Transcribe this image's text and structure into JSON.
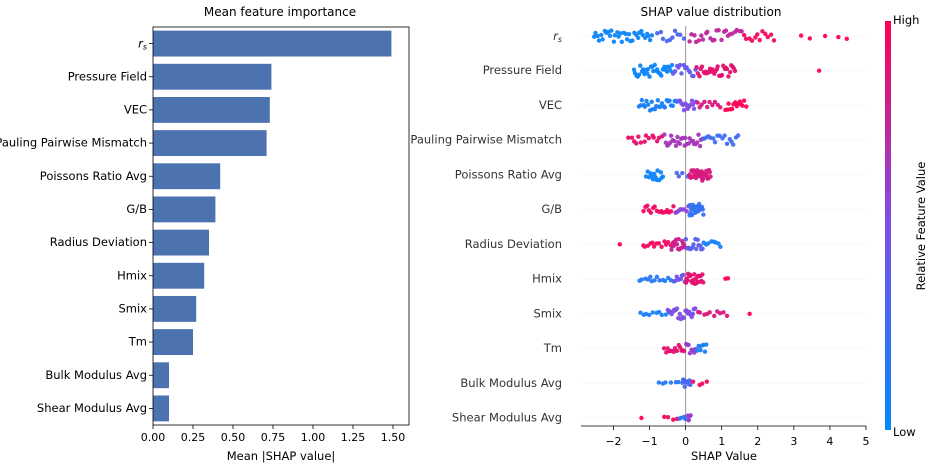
{
  "colors": {
    "bar": "#4c72b0",
    "low": "#008bfb",
    "high": "#ff0052",
    "zero_line": "#999999",
    "grid": "#eeeeee"
  },
  "chart_data": [
    {
      "type": "bar",
      "orientation": "horizontal",
      "title": "Mean feature importance",
      "xlabel": "Mean |SHAP value|",
      "ylabel": "",
      "categories": [
        "r_s",
        "Pressure Field",
        "VEC",
        "Pauling Pairwise Mismatch",
        "Poissons Ratio Avg",
        "G/B",
        "Radius Deviation",
        "Hmix",
        "Smix",
        "Tm",
        "Bulk Modulus Avg",
        "Shear Modulus Avg"
      ],
      "values": [
        1.49,
        0.74,
        0.73,
        0.71,
        0.42,
        0.39,
        0.35,
        0.32,
        0.27,
        0.25,
        0.1,
        0.1
      ],
      "xlim": [
        0,
        1.6
      ],
      "xticks": [
        "0.00",
        "0.25",
        "0.50",
        "0.75",
        "1.00",
        "1.25",
        "1.50"
      ],
      "grid": false
    },
    {
      "type": "scatter",
      "subtype": "beeswarm",
      "title": "SHAP value distribution",
      "xlabel": "SHAP Value",
      "ylabel": "",
      "categories": [
        "r_s",
        "Pressure Field",
        "VEC",
        "Pauling Pairwise Mismatch",
        "Poissons Ratio Avg",
        "G/B",
        "Radius Deviation",
        "Hmix",
        "Smix",
        "Tm",
        "Bulk Modulus Avg",
        "Shear Modulus Avg"
      ],
      "xlim": [
        -2.9,
        5.0
      ],
      "xticks": [
        "−2",
        "−1",
        "0",
        "1",
        "2",
        "3",
        "4",
        "5"
      ],
      "color_scale": {
        "label": "Relative Feature Value",
        "high": "High",
        "low": "Low"
      },
      "series": [
        {
          "feature": "r_s",
          "points": [
            {
              "lo": -2.55,
              "hi": -0.9,
              "n": 34,
              "c": 0.05,
              "s": 1.0
            },
            {
              "lo": -0.8,
              "hi": 0.0,
              "n": 10,
              "c": 0.3,
              "s": 0.9
            },
            {
              "lo": 0.1,
              "hi": 1.6,
              "n": 24,
              "c": 0.75,
              "s": 1.0
            },
            {
              "lo": 1.6,
              "hi": 2.5,
              "n": 12,
              "c": 0.95,
              "s": 0.9
            },
            {
              "lo": 3.1,
              "hi": 4.7,
              "n": 5,
              "c": 1.0,
              "s": 0.5
            }
          ]
        },
        {
          "feature": "Pressure Field",
          "points": [
            {
              "lo": -1.45,
              "hi": -0.35,
              "n": 30,
              "c": 0.05,
              "s": 1.0
            },
            {
              "lo": -0.35,
              "hi": 0.3,
              "n": 14,
              "c": 0.4,
              "s": 1.0
            },
            {
              "lo": 0.3,
              "hi": 1.4,
              "n": 30,
              "c": 0.9,
              "s": 1.0
            },
            {
              "lo": 3.65,
              "hi": 3.75,
              "n": 1,
              "c": 1.0,
              "s": 0.0
            }
          ]
        },
        {
          "feature": "VEC",
          "points": [
            {
              "lo": -1.3,
              "hi": -0.2,
              "n": 26,
              "c": 0.1,
              "s": 0.9
            },
            {
              "lo": -0.2,
              "hi": 0.3,
              "n": 14,
              "c": 0.5,
              "s": 1.0
            },
            {
              "lo": 0.3,
              "hi": 1.0,
              "n": 10,
              "c": 0.85,
              "s": 0.6
            },
            {
              "lo": 1.1,
              "hi": 1.7,
              "n": 14,
              "c": 1.0,
              "s": 0.8
            }
          ]
        },
        {
          "feature": "Pauling Pairwise Mismatch",
          "points": [
            {
              "lo": -1.6,
              "hi": -0.6,
              "n": 14,
              "c": 0.92,
              "s": 0.8
            },
            {
              "lo": -0.6,
              "hi": 0.5,
              "n": 28,
              "c": 0.65,
              "s": 1.0
            },
            {
              "lo": 0.5,
              "hi": 1.5,
              "n": 16,
              "c": 0.25,
              "s": 0.9
            }
          ]
        },
        {
          "feature": "Poissons Ratio Avg",
          "points": [
            {
              "lo": -1.1,
              "hi": -0.6,
              "n": 14,
              "c": 0.05,
              "s": 0.9
            },
            {
              "lo": -0.3,
              "hi": 0.1,
              "n": 4,
              "c": 0.3,
              "s": 0.4
            },
            {
              "lo": 0.1,
              "hi": 0.7,
              "n": 30,
              "c": 0.85,
              "s": 1.0
            }
          ]
        },
        {
          "feature": "G/B",
          "points": [
            {
              "lo": -1.2,
              "hi": -0.3,
              "n": 16,
              "c": 0.95,
              "s": 0.7
            },
            {
              "lo": -0.3,
              "hi": 0.1,
              "n": 8,
              "c": 0.55,
              "s": 0.6
            },
            {
              "lo": 0.1,
              "hi": 0.5,
              "n": 22,
              "c": 0.2,
              "s": 1.0
            }
          ]
        },
        {
          "feature": "Radius Deviation",
          "points": [
            {
              "lo": -1.85,
              "hi": -1.8,
              "n": 1,
              "c": 1.0,
              "s": 0.0
            },
            {
              "lo": -1.2,
              "hi": -0.3,
              "n": 14,
              "c": 0.95,
              "s": 0.5
            },
            {
              "lo": -0.4,
              "hi": 0.0,
              "n": 16,
              "c": 0.8,
              "s": 1.0
            },
            {
              "lo": 0.0,
              "hi": 0.5,
              "n": 14,
              "c": 0.35,
              "s": 0.9
            },
            {
              "lo": 0.5,
              "hi": 1.0,
              "n": 8,
              "c": 0.1,
              "s": 0.5
            }
          ]
        },
        {
          "feature": "Hmix",
          "points": [
            {
              "lo": -1.3,
              "hi": -0.3,
              "n": 14,
              "c": 0.15,
              "s": 0.4
            },
            {
              "lo": -0.3,
              "hi": 0.0,
              "n": 8,
              "c": 0.45,
              "s": 0.7
            },
            {
              "lo": 0.0,
              "hi": 0.5,
              "n": 22,
              "c": 0.9,
              "s": 1.0
            },
            {
              "lo": 1.1,
              "hi": 1.2,
              "n": 2,
              "c": 1.0,
              "s": 0.3
            }
          ]
        },
        {
          "feature": "Smix",
          "points": [
            {
              "lo": -1.3,
              "hi": -0.4,
              "n": 10,
              "c": 0.1,
              "s": 0.3
            },
            {
              "lo": -0.5,
              "hi": 0.3,
              "n": 22,
              "c": 0.5,
              "s": 1.0
            },
            {
              "lo": 0.3,
              "hi": 1.2,
              "n": 10,
              "c": 0.85,
              "s": 0.4
            },
            {
              "lo": 1.75,
              "hi": 1.8,
              "n": 1,
              "c": 1.0,
              "s": 0.0
            }
          ]
        },
        {
          "feature": "Tm",
          "points": [
            {
              "lo": -0.6,
              "hi": 0.0,
              "n": 14,
              "c": 0.9,
              "s": 0.7
            },
            {
              "lo": 0.0,
              "hi": 0.3,
              "n": 8,
              "c": 0.6,
              "s": 0.8
            },
            {
              "lo": 0.3,
              "hi": 0.6,
              "n": 8,
              "c": 0.1,
              "s": 0.7
            }
          ]
        },
        {
          "feature": "Bulk Modulus Avg",
          "points": [
            {
              "lo": -0.8,
              "hi": -0.1,
              "n": 6,
              "c": 0.15,
              "s": 0.3
            },
            {
              "lo": -0.1,
              "hi": 0.15,
              "n": 10,
              "c": 0.3,
              "s": 0.6
            },
            {
              "lo": 0.2,
              "hi": 0.7,
              "n": 4,
              "c": 0.95,
              "s": 0.3
            }
          ]
        },
        {
          "feature": "Shear Modulus Avg",
          "points": [
            {
              "lo": -1.25,
              "hi": -1.2,
              "n": 1,
              "c": 1.0,
              "s": 0.0
            },
            {
              "lo": -0.6,
              "hi": -0.2,
              "n": 4,
              "c": 0.95,
              "s": 0.3
            },
            {
              "lo": -0.2,
              "hi": 0.05,
              "n": 4,
              "c": 0.2,
              "s": 0.3
            },
            {
              "lo": 0.05,
              "hi": 0.15,
              "n": 5,
              "c": 0.6,
              "s": 0.5
            }
          ]
        }
      ]
    }
  ]
}
